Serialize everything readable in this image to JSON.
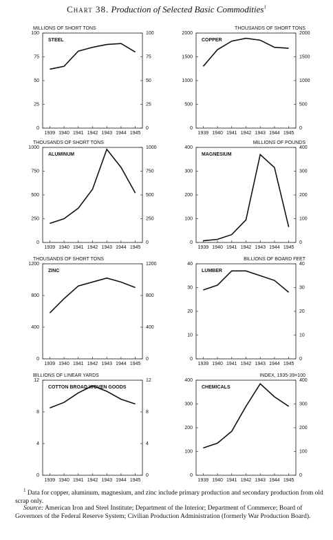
{
  "header": {
    "label": "Chart 38.",
    "title": "Production of Selected Basic Commodities",
    "note_ref": "1"
  },
  "chart_data": [
    {
      "type": "line",
      "title": "STEEL",
      "unit_label": "MILLIONS OF SHORT TONS",
      "categories": [
        "1939",
        "1940",
        "1941",
        "1942",
        "1943",
        "1944",
        "1945"
      ],
      "values": [
        62,
        65,
        81,
        85,
        88,
        89,
        80
      ],
      "ylim": [
        0,
        100
      ],
      "yticks": [
        0,
        25,
        50,
        75,
        100
      ],
      "color": "#111111"
    },
    {
      "type": "line",
      "title": "COPPER",
      "unit_label": "THOUSANDS OF SHORT TONS",
      "categories": [
        "1939",
        "1940",
        "1941",
        "1942",
        "1943",
        "1944",
        "1945"
      ],
      "values": [
        1300,
        1650,
        1830,
        1890,
        1850,
        1700,
        1680
      ],
      "ylim": [
        0,
        2000
      ],
      "yticks": [
        0,
        500,
        1000,
        1500,
        2000
      ],
      "color": "#111111"
    },
    {
      "type": "line",
      "title": "ALUMINUM",
      "unit_label": "THOUSANDS OF SHORT TONS",
      "categories": [
        "1939",
        "1940",
        "1941",
        "1942",
        "1943",
        "1944",
        "1945"
      ],
      "values": [
        200,
        250,
        360,
        560,
        980,
        790,
        520
      ],
      "ylim": [
        0,
        1000
      ],
      "yticks": [
        0,
        250,
        500,
        750,
        1000
      ],
      "color": "#111111"
    },
    {
      "type": "line",
      "title": "MAGNESIUM",
      "unit_label": "MILLIONS OF POUNDS",
      "categories": [
        "1939",
        "1940",
        "1941",
        "1942",
        "1943",
        "1944",
        "1945"
      ],
      "values": [
        7,
        13,
        33,
        95,
        370,
        315,
        65
      ],
      "ylim": [
        0,
        400
      ],
      "yticks": [
        0,
        100,
        200,
        300,
        400
      ],
      "color": "#111111"
    },
    {
      "type": "line",
      "title": "ZINC",
      "unit_label": "THOUSANDS OF SHORT TONS",
      "categories": [
        "1939",
        "1940",
        "1941",
        "1942",
        "1943",
        "1944",
        "1945"
      ],
      "values": [
        580,
        760,
        920,
        970,
        1020,
        970,
        900
      ],
      "ylim": [
        0,
        1200
      ],
      "yticks": [
        0,
        400,
        800,
        1200
      ],
      "color": "#111111"
    },
    {
      "type": "line",
      "title": "LUMBER",
      "unit_label": "BILLIONS OF BOARD FEET",
      "categories": [
        "1939",
        "1940",
        "1941",
        "1942",
        "1943",
        "1944",
        "1945"
      ],
      "values": [
        29,
        31,
        37,
        37,
        35,
        33,
        28
      ],
      "ylim": [
        0,
        40
      ],
      "yticks": [
        0,
        10,
        20,
        30,
        40
      ],
      "color": "#111111"
    },
    {
      "type": "line",
      "title": "COTTON BROAD WOVEN GOODS",
      "unit_label": "BILLIONS OF LINEAR YARDS",
      "categories": [
        "1939",
        "1940",
        "1941",
        "1942",
        "1943",
        "1944",
        "1945"
      ],
      "values": [
        8.5,
        9.2,
        10.4,
        11.3,
        10.6,
        9.6,
        9.0
      ],
      "ylim": [
        0,
        12
      ],
      "yticks": [
        0,
        4,
        8,
        12
      ],
      "color": "#111111"
    },
    {
      "type": "line",
      "title": "CHEMICALS",
      "unit_label": "INDEX, 1935-39=100",
      "categories": [
        "1939",
        "1940",
        "1941",
        "1942",
        "1943",
        "1944",
        "1945"
      ],
      "values": [
        115,
        135,
        185,
        290,
        385,
        330,
        290
      ],
      "ylim": [
        0,
        400
      ],
      "yticks": [
        0,
        100,
        200,
        300,
        400
      ],
      "color": "#111111"
    }
  ],
  "footnote": {
    "marker": "1",
    "text": "Data for copper, aluminum, magnesium, and zinc include primary production and secondary production from old scrap only."
  },
  "source": {
    "label": "Source:",
    "text": "American Iron and Steel Institute; Department of the Interior; Department of Commerce; Board of Governors of the Federal Reserve System; Civilian Production Administration (formerly War Production Board)."
  }
}
